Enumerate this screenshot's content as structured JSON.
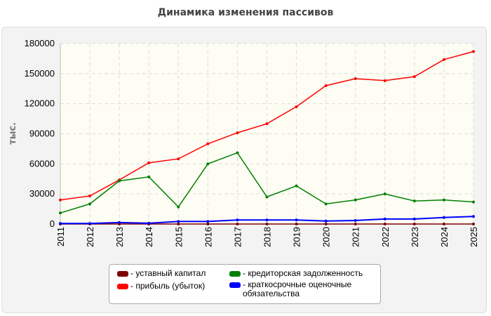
{
  "chart_data": {
    "type": "line",
    "title": "Динамика изменения пассивов",
    "ylabel": "тыс.",
    "xlabel": "",
    "ylim": [
      0,
      180000
    ],
    "yticks": [
      0,
      30000,
      60000,
      90000,
      120000,
      150000,
      180000
    ],
    "x": [
      "2011",
      "2012",
      "2013",
      "2014",
      "2015",
      "2016",
      "2017",
      "2018",
      "2019",
      "2020",
      "2021",
      "2022",
      "2023",
      "2024",
      "2025"
    ],
    "grid": true,
    "legend_position": "bottom",
    "series": [
      {
        "name": "- уставный капитал",
        "color": "#800000",
        "values": [
          10,
          10,
          10,
          10,
          10,
          10,
          10,
          10,
          10,
          10,
          10,
          10,
          10,
          10,
          10
        ]
      },
      {
        "name": "- прибыль (убыток)",
        "color": "#ff0000",
        "values": [
          24000,
          28000,
          44000,
          61000,
          65000,
          80000,
          91000,
          100000,
          117000,
          138000,
          145000,
          143000,
          147000,
          164000,
          172000
        ]
      },
      {
        "name": "- кредиторская задолженность",
        "color": "#008000",
        "values": [
          11000,
          20000,
          43000,
          47000,
          17000,
          60000,
          71000,
          27000,
          38000,
          20000,
          24000,
          30000,
          23000,
          24000,
          22000
        ]
      },
      {
        "name": "- краткосрочные оценочные обязательства",
        "color": "#0000ff",
        "values": [
          500,
          500,
          1500,
          800,
          2500,
          2500,
          4000,
          4000,
          4000,
          3000,
          3500,
          5000,
          5000,
          6500,
          7500
        ]
      }
    ]
  }
}
